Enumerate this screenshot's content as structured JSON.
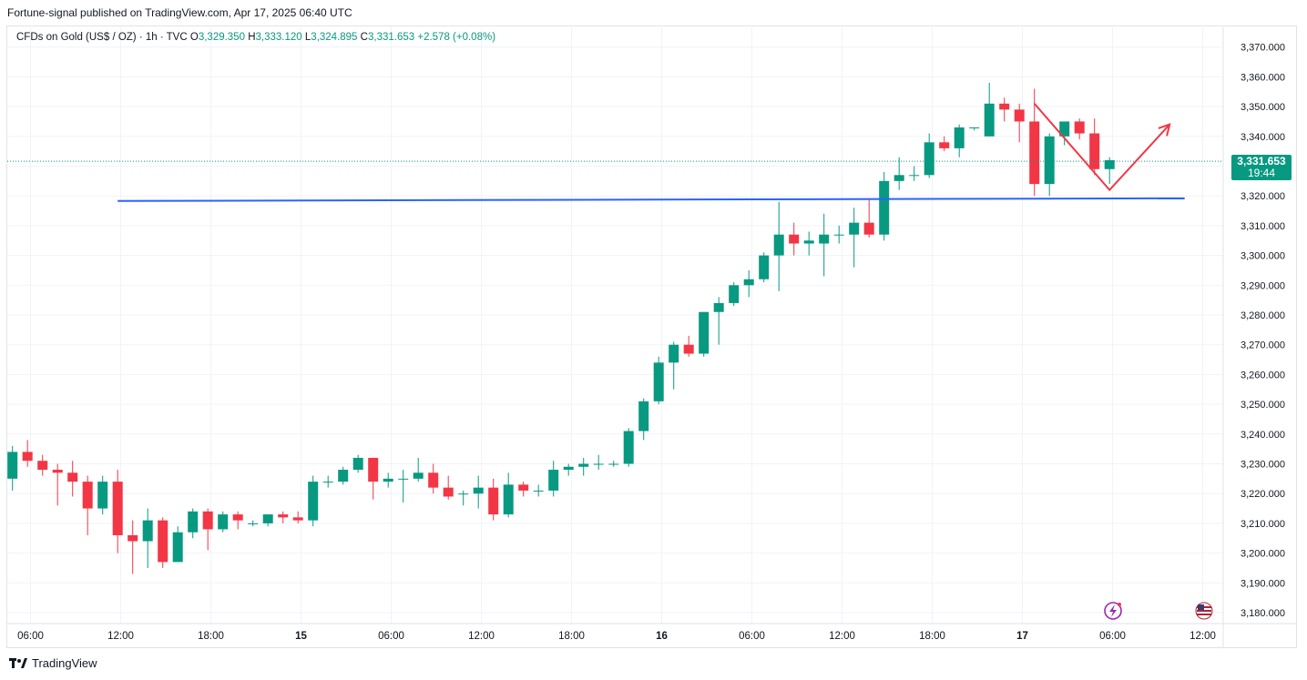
{
  "publisher": "Fortune-signal published on TradingView.com, Apr 17, 2025 06:40 UTC",
  "legend": {
    "symbol": "CFDs on Gold (US$ / OZ) · 1h · TVC",
    "open_label": "O",
    "open": "3,329.350",
    "high_label": "H",
    "high": "3,333.120",
    "low_label": "L",
    "low": "3,324.895",
    "close_label": "C",
    "close": "3,331.653",
    "change": "+2.578 (+0.08%)"
  },
  "price_tag": {
    "price": "3,331.653",
    "countdown": "19:44"
  },
  "footer": {
    "brand": "TradingView"
  },
  "colors": {
    "up": "#089981",
    "down": "#f23645",
    "hline": "#2962ff",
    "arrow": "#f23645",
    "grid": "#f0f3fa"
  },
  "chart_data": {
    "type": "candlestick",
    "y_axis": {
      "ylim": [
        3175,
        3376
      ],
      "ticks": [
        3180,
        3190,
        3200,
        3210,
        3220,
        3230,
        3240,
        3250,
        3260,
        3270,
        3280,
        3290,
        3300,
        3310,
        3320,
        3330,
        3340,
        3350,
        3360,
        3370
      ],
      "tick_labels": [
        "3,180.000",
        "3,190.000",
        "3,200.000",
        "3,210.000",
        "3,220.000",
        "3,230.000",
        "3,240.000",
        "3,250.000",
        "3,260.000",
        "3,270.000",
        "3,280.000",
        "3,290.000",
        "3,300.000",
        "3,310.000",
        "3,320.000",
        "3,330.000",
        "3,340.000",
        "3,350.000",
        "3,360.000",
        "3,370.000"
      ]
    },
    "x_axis": {
      "ticks": [
        {
          "label": "06:00",
          "hour": 6
        },
        {
          "label": "12:00",
          "hour": 12
        },
        {
          "label": "18:00",
          "hour": 18
        },
        {
          "label": "15",
          "hour": 24,
          "bold": true
        },
        {
          "label": "06:00",
          "hour": 30
        },
        {
          "label": "12:00",
          "hour": 36
        },
        {
          "label": "18:00",
          "hour": 42
        },
        {
          "label": "16",
          "hour": 48,
          "bold": true
        },
        {
          "label": "06:00",
          "hour": 54
        },
        {
          "label": "12:00",
          "hour": 60
        },
        {
          "label": "18:00",
          "hour": 66
        },
        {
          "label": "17",
          "hour": 72,
          "bold": true
        },
        {
          "label": "06:00",
          "hour": 78
        },
        {
          "label": "12:00",
          "hour": 84
        }
      ]
    },
    "candles": [
      {
        "hour": 4.8,
        "o": 3225,
        "h": 3236,
        "l": 3221,
        "c": 3234
      },
      {
        "hour": 5.8,
        "o": 3234,
        "h": 3238,
        "l": 3229,
        "c": 3231
      },
      {
        "hour": 6.8,
        "o": 3231,
        "h": 3233,
        "l": 3226,
        "c": 3228
      },
      {
        "hour": 7.8,
        "o": 3228,
        "h": 3230,
        "l": 3216,
        "c": 3227
      },
      {
        "hour": 8.8,
        "o": 3227,
        "h": 3231,
        "l": 3219,
        "c": 3224
      },
      {
        "hour": 9.8,
        "o": 3224,
        "h": 3226,
        "l": 3206,
        "c": 3215
      },
      {
        "hour": 10.8,
        "o": 3215,
        "h": 3226,
        "l": 3213,
        "c": 3224
      },
      {
        "hour": 11.8,
        "o": 3224,
        "h": 3228,
        "l": 3200,
        "c": 3206
      },
      {
        "hour": 12.8,
        "o": 3206,
        "h": 3211,
        "l": 3193,
        "c": 3204
      },
      {
        "hour": 13.8,
        "o": 3204,
        "h": 3215,
        "l": 3195,
        "c": 3211
      },
      {
        "hour": 14.8,
        "o": 3211,
        "h": 3212,
        "l": 3195,
        "c": 3197
      },
      {
        "hour": 15.8,
        "o": 3197,
        "h": 3209,
        "l": 3197,
        "c": 3207
      },
      {
        "hour": 16.8,
        "o": 3207,
        "h": 3215,
        "l": 3205,
        "c": 3214
      },
      {
        "hour": 17.8,
        "o": 3214,
        "h": 3215,
        "l": 3201,
        "c": 3208
      },
      {
        "hour": 18.8,
        "o": 3208,
        "h": 3214,
        "l": 3207,
        "c": 3213
      },
      {
        "hour": 19.8,
        "o": 3213,
        "h": 3214,
        "l": 3208,
        "c": 3211
      },
      {
        "hour": 20.8,
        "o": 3210,
        "h": 3211,
        "l": 3209,
        "c": 3210
      },
      {
        "hour": 21.8,
        "o": 3210,
        "h": 3213,
        "l": 3209,
        "c": 3213
      },
      {
        "hour": 22.8,
        "o": 3213,
        "h": 3214,
        "l": 3210,
        "c": 3212
      },
      {
        "hour": 23.8,
        "o": 3212,
        "h": 3214,
        "l": 3210,
        "c": 3211
      },
      {
        "hour": 24.8,
        "o": 3211,
        "h": 3226,
        "l": 3209,
        "c": 3224
      },
      {
        "hour": 25.8,
        "o": 3224,
        "h": 3226,
        "l": 3222,
        "c": 3224
      },
      {
        "hour": 26.8,
        "o": 3224,
        "h": 3229,
        "l": 3223,
        "c": 3228
      },
      {
        "hour": 27.8,
        "o": 3228,
        "h": 3233,
        "l": 3227,
        "c": 3232
      },
      {
        "hour": 28.8,
        "o": 3232,
        "h": 3232,
        "l": 3218,
        "c": 3224
      },
      {
        "hour": 29.8,
        "o": 3224,
        "h": 3227,
        "l": 3222,
        "c": 3225
      },
      {
        "hour": 30.8,
        "o": 3225,
        "h": 3228,
        "l": 3217,
        "c": 3225
      },
      {
        "hour": 31.8,
        "o": 3225,
        "h": 3232,
        "l": 3224,
        "c": 3227
      },
      {
        "hour": 32.8,
        "o": 3227,
        "h": 3230,
        "l": 3220,
        "c": 3222
      },
      {
        "hour": 33.8,
        "o": 3222,
        "h": 3226,
        "l": 3218,
        "c": 3219
      },
      {
        "hour": 34.8,
        "o": 3220,
        "h": 3221,
        "l": 3216,
        "c": 3220
      },
      {
        "hour": 35.8,
        "o": 3220,
        "h": 3226,
        "l": 3215,
        "c": 3222
      },
      {
        "hour": 36.8,
        "o": 3222,
        "h": 3225,
        "l": 3211,
        "c": 3213
      },
      {
        "hour": 37.8,
        "o": 3213,
        "h": 3227,
        "l": 3212,
        "c": 3223
      },
      {
        "hour": 38.8,
        "o": 3223,
        "h": 3224,
        "l": 3219,
        "c": 3221
      },
      {
        "hour": 39.8,
        "o": 3221,
        "h": 3223,
        "l": 3219,
        "c": 3221
      },
      {
        "hour": 40.8,
        "o": 3221,
        "h": 3231,
        "l": 3219,
        "c": 3228
      },
      {
        "hour": 41.8,
        "o": 3228,
        "h": 3230,
        "l": 3226,
        "c": 3229
      },
      {
        "hour": 42.8,
        "o": 3229,
        "h": 3232,
        "l": 3226,
        "c": 3230
      },
      {
        "hour": 43.8,
        "o": 3230,
        "h": 3233,
        "l": 3228,
        "c": 3230
      },
      {
        "hour": 44.8,
        "o": 3230,
        "h": 3231,
        "l": 3229,
        "c": 3230
      },
      {
        "hour": 45.8,
        "o": 3230,
        "h": 3242,
        "l": 3229,
        "c": 3241
      },
      {
        "hour": 46.8,
        "o": 3241,
        "h": 3252,
        "l": 3238,
        "c": 3251
      },
      {
        "hour": 47.8,
        "o": 3251,
        "h": 3266,
        "l": 3250,
        "c": 3264
      },
      {
        "hour": 48.8,
        "o": 3264,
        "h": 3271,
        "l": 3255,
        "c": 3270
      },
      {
        "hour": 49.8,
        "o": 3270,
        "h": 3273,
        "l": 3266,
        "c": 3267
      },
      {
        "hour": 50.8,
        "o": 3267,
        "h": 3281,
        "l": 3266,
        "c": 3281
      },
      {
        "hour": 51.8,
        "o": 3281,
        "h": 3286,
        "l": 3270,
        "c": 3284
      },
      {
        "hour": 52.8,
        "o": 3284,
        "h": 3291,
        "l": 3283,
        "c": 3290
      },
      {
        "hour": 53.8,
        "o": 3290,
        "h": 3295,
        "l": 3286,
        "c": 3292
      },
      {
        "hour": 54.8,
        "o": 3292,
        "h": 3301,
        "l": 3291,
        "c": 3300
      },
      {
        "hour": 55.8,
        "o": 3300,
        "h": 3318,
        "l": 3288,
        "c": 3307
      },
      {
        "hour": 56.8,
        "o": 3307,
        "h": 3311,
        "l": 3300,
        "c": 3304
      },
      {
        "hour": 57.8,
        "o": 3304,
        "h": 3308,
        "l": 3300,
        "c": 3305
      },
      {
        "hour": 58.8,
        "o": 3304,
        "h": 3314,
        "l": 3293,
        "c": 3307
      },
      {
        "hour": 59.8,
        "o": 3307,
        "h": 3310,
        "l": 3304,
        "c": 3307
      },
      {
        "hour": 60.8,
        "o": 3307,
        "h": 3316,
        "l": 3296,
        "c": 3311
      },
      {
        "hour": 61.8,
        "o": 3311,
        "h": 3319,
        "l": 3306,
        "c": 3307
      },
      {
        "hour": 62.8,
        "o": 3307,
        "h": 3328,
        "l": 3305,
        "c": 3325
      },
      {
        "hour": 63.8,
        "o": 3325,
        "h": 3333,
        "l": 3322,
        "c": 3327
      },
      {
        "hour": 64.8,
        "o": 3327,
        "h": 3330,
        "l": 3325,
        "c": 3327
      },
      {
        "hour": 65.8,
        "o": 3327,
        "h": 3341,
        "l": 3326,
        "c": 3338
      },
      {
        "hour": 66.8,
        "o": 3338,
        "h": 3340,
        "l": 3335,
        "c": 3336
      },
      {
        "hour": 67.8,
        "o": 3336,
        "h": 3344,
        "l": 3333,
        "c": 3343
      },
      {
        "hour": 68.8,
        "o": 3343,
        "h": 3343,
        "l": 3342,
        "c": 3343
      },
      {
        "hour": 69.8,
        "o": 3340,
        "h": 3358,
        "l": 3340,
        "c": 3351
      },
      {
        "hour": 70.8,
        "o": 3351,
        "h": 3353,
        "l": 3345,
        "c": 3349
      },
      {
        "hour": 71.8,
        "o": 3349,
        "h": 3351,
        "l": 3338,
        "c": 3345
      },
      {
        "hour": 72.8,
        "o": 3345,
        "h": 3356,
        "l": 3320,
        "c": 3324
      },
      {
        "hour": 73.8,
        "o": 3324,
        "h": 3341,
        "l": 3320,
        "c": 3340
      },
      {
        "hour": 74.8,
        "o": 3340,
        "h": 3345,
        "l": 3337,
        "c": 3345
      },
      {
        "hour": 75.8,
        "o": 3345,
        "h": 3346,
        "l": 3339,
        "c": 3341
      },
      {
        "hour": 76.8,
        "o": 3341,
        "h": 3346,
        "l": 3327,
        "c": 3329
      },
      {
        "hour": 77.8,
        "o": 3329,
        "h": 3333,
        "l": 3324,
        "c": 3332
      }
    ],
    "annotations": {
      "horizontal_line": {
        "from_hour": 11.8,
        "to_hour": 82.8,
        "from_y": 3318.3,
        "to_y": 3319.2
      },
      "path": [
        {
          "hour": 72.8,
          "y": 3351
        },
        {
          "hour": 77.8,
          "y": 3322
        },
        {
          "hour": 81.8,
          "y": 3344
        }
      ],
      "current_price": 3331.653
    }
  }
}
